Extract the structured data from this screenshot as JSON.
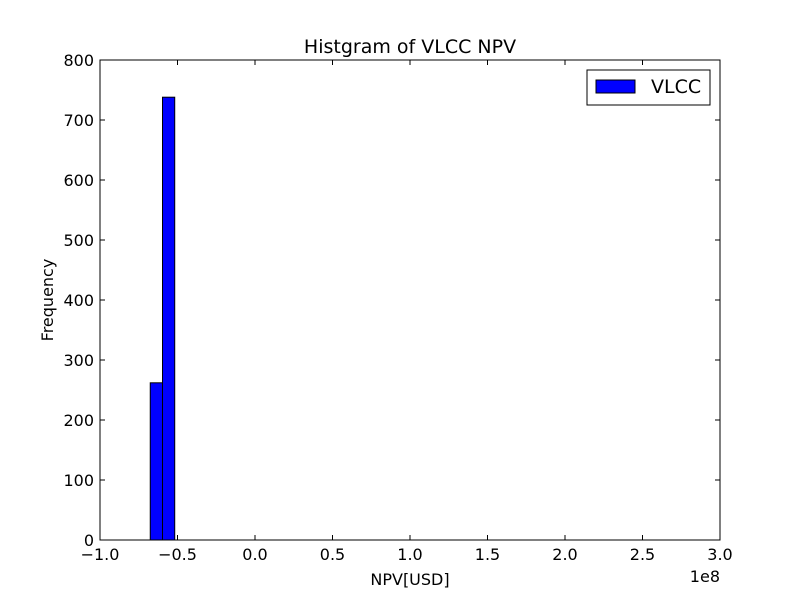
{
  "chart_data": {
    "type": "bar",
    "title": "Histgram of VLCC NPV",
    "xlabel": "NPV[USD]",
    "ylabel": "Frequency",
    "x_offset_label": "1e8",
    "xlim": [
      -1.0,
      3.0
    ],
    "ylim": [
      0,
      800
    ],
    "xticks": [
      "−1.0",
      "−0.5",
      "0.0",
      "0.5",
      "1.0",
      "1.5",
      "2.0",
      "2.5",
      "3.0"
    ],
    "yticks": [
      "0",
      "100",
      "200",
      "300",
      "400",
      "500",
      "600",
      "700",
      "800"
    ],
    "bins": [
      {
        "x_start": -0.6758,
        "x_end": -0.5968,
        "value": 262
      },
      {
        "x_start": -0.5968,
        "x_end": -0.5179,
        "value": 738
      }
    ],
    "series": [
      {
        "name": "VLCC",
        "color": "#0000ff"
      }
    ],
    "legend_location": "top-right",
    "grid": false
  }
}
